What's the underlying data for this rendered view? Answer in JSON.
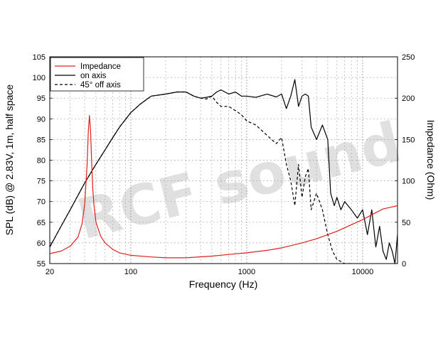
{
  "chart_data": {
    "type": "line",
    "xlabel": "Frequency (Hz)",
    "ylabel_left": "SPL (dB) @ 2.83V, 1m, half space",
    "ylabel_right": "Impedance (Ohm)",
    "x_scale": "log",
    "xlim": [
      20,
      20000
    ],
    "ylim_left": [
      55,
      105
    ],
    "ylim_right": [
      0,
      250
    ],
    "x_tick_labels": [
      "20",
      "100",
      "1000",
      "10000"
    ],
    "y_left_tick_labels": [
      "55",
      "60",
      "65",
      "70",
      "75",
      "80",
      "85",
      "90",
      "95",
      "100",
      "105"
    ],
    "y_right_tick_labels": [
      "0",
      "50",
      "100",
      "150",
      "200",
      "250"
    ],
    "grid": true,
    "legend_position": "top-left",
    "watermark": "RCF sound",
    "series": [
      {
        "name": "Impedance",
        "axis": "right",
        "color": "#e0201c",
        "dash": "solid",
        "x": [
          20,
          25,
          30,
          35,
          38,
          40,
          42,
          43,
          44,
          45,
          46,
          47,
          48,
          50,
          55,
          60,
          70,
          80,
          100,
          150,
          200,
          300,
          500,
          700,
          1000,
          1500,
          2000,
          3000,
          4000,
          5000,
          6000,
          8000,
          10000,
          12000,
          15000,
          20000
        ],
        "values": [
          12,
          15,
          21,
          32,
          48,
          72,
          120,
          160,
          179,
          160,
          120,
          90,
          72,
          50,
          33,
          25,
          17,
          13,
          10,
          8,
          7,
          7,
          9,
          11,
          13,
          16,
          19,
          25,
          30,
          35,
          39,
          47,
          53,
          59,
          66,
          70
        ]
      },
      {
        "name": "on axis",
        "axis": "left",
        "color": "#000000",
        "dash": "solid",
        "x": [
          20,
          25,
          30,
          40,
          50,
          60,
          70,
          80,
          100,
          120,
          150,
          200,
          250,
          300,
          350,
          400,
          450,
          500,
          550,
          600,
          700,
          800,
          900,
          1000,
          1200,
          1500,
          1800,
          2000,
          2200,
          2400,
          2600,
          2800,
          3000,
          3200,
          3400,
          3600,
          4000,
          4500,
          5000,
          5300,
          5700,
          6000,
          6500,
          7000,
          8000,
          9000,
          10000,
          11000,
          12000,
          13000,
          14000,
          15000,
          16000,
          17000,
          18000,
          19000,
          20000
        ],
        "values": [
          59,
          64,
          68,
          74.5,
          79,
          82.5,
          85.5,
          88,
          91.5,
          93.5,
          95.5,
          96,
          96.5,
          96.5,
          95.5,
          95,
          95.2,
          95.5,
          96.5,
          97,
          96,
          96.5,
          95.5,
          95.5,
          95.2,
          96,
          95.3,
          96,
          92.5,
          95.5,
          99.5,
          93,
          95.5,
          96,
          95.5,
          88,
          85,
          88.5,
          85,
          72,
          69,
          71,
          68,
          70,
          68,
          66,
          68,
          62,
          68,
          59,
          64,
          58,
          56,
          60,
          58,
          55,
          62
        ]
      },
      {
        "name": "45° off axis",
        "axis": "left",
        "color": "#000000",
        "dash": "dashed",
        "x": [
          20,
          25,
          30,
          40,
          50,
          60,
          70,
          80,
          100,
          120,
          150,
          200,
          250,
          300,
          350,
          400,
          450,
          500,
          550,
          600,
          700,
          800,
          900,
          1000,
          1200,
          1500,
          1800,
          2000,
          2200,
          2400,
          2600,
          2800,
          3000,
          3200,
          3400,
          3600,
          4000,
          4500,
          5000,
          5500,
          6000,
          6500,
          7000,
          8000
        ],
        "values": [
          59,
          64,
          68,
          74.5,
          79,
          82.5,
          85.5,
          88,
          91.5,
          93.5,
          95.5,
          96,
          96.5,
          96.5,
          95.5,
          95,
          94.8,
          95.5,
          94,
          93,
          93,
          92,
          91,
          89.5,
          88.5,
          86,
          84,
          85.5,
          79,
          75,
          69,
          79,
          71,
          76,
          78,
          68,
          72,
          68,
          62,
          58,
          56,
          55.5,
          55,
          55
        ]
      }
    ]
  }
}
